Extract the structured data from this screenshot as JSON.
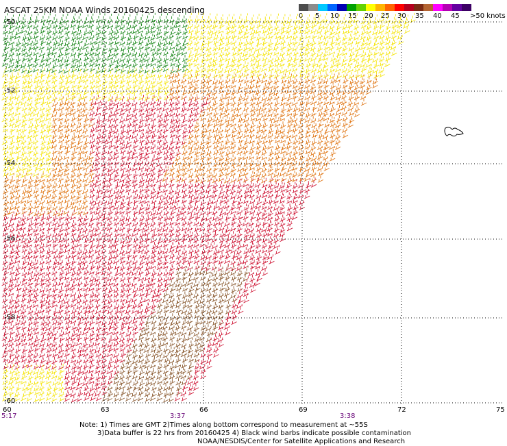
{
  "header": {
    "title": "ASCAT 25KM NOAA Winds 20160425 descending"
  },
  "legend": {
    "colors": [
      "#4d4d4d",
      "#8c8c8c",
      "#00c8ff",
      "#0064ff",
      "#0000b4",
      "#00a000",
      "#64d200",
      "#ffff00",
      "#ffb400",
      "#ff6400",
      "#ff0000",
      "#b4001e",
      "#7a2a14",
      "#b46432",
      "#ff00ff",
      "#b400b4",
      "#6400a0",
      "#3c0064"
    ],
    "labels": [
      "0",
      "5",
      "10",
      "15",
      "20",
      "25",
      "30",
      "35",
      "40",
      "45",
      ">50 knots"
    ]
  },
  "axes": {
    "lat_labels": [
      "-50",
      "-52",
      "-54",
      "-56",
      "-58",
      "-60"
    ],
    "lon_labels": [
      "60",
      "63",
      "66",
      "69",
      "72",
      "75"
    ],
    "time_labels": [
      "5:17",
      "3:37",
      "3:38"
    ]
  },
  "notes": {
    "line1": "Note: 1) Times are GMT 2)Times along bottom correspond to measurement at ~55S",
    "line2": "3)Data buffer is 22 hrs from 20160425 4) Black wind barbs indicate possible contamination",
    "line3": "NOAA/NESDIS/Center for Satellite Applications and Research"
  },
  "swath_colors": {
    "green": "#228b22",
    "yellow": "#f5e50f",
    "orange": "#e07818",
    "red": "#d01c3a",
    "brown": "#8a5a30"
  }
}
